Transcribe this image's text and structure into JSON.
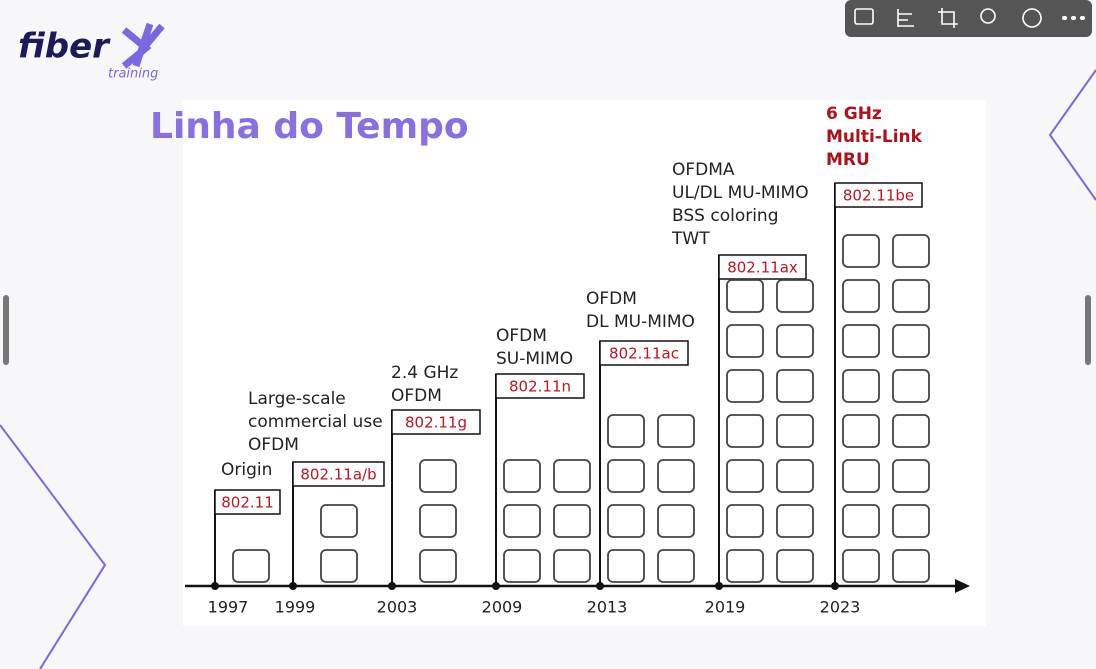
{
  "logo": {
    "name": "fiber",
    "tagline": "training"
  },
  "slide": {
    "title": "Linha do Tempo",
    "milestones": [
      {
        "year": "1997",
        "standard": "802.11",
        "features": [
          "Origin"
        ]
      },
      {
        "year": "1999",
        "standard": "802.11a/b",
        "features": [
          "Large-scale",
          "commercial use",
          "OFDM"
        ]
      },
      {
        "year": "2003",
        "standard": "802.11g",
        "features": [
          "2.4 GHz",
          "OFDM"
        ]
      },
      {
        "year": "2009",
        "standard": "802.11n",
        "features": [
          "OFDM",
          "SU-MIMO"
        ]
      },
      {
        "year": "2013",
        "standard": "802.11ac",
        "features": [
          "OFDM",
          "DL MU-MIMO"
        ]
      },
      {
        "year": "2019",
        "standard": "802.11ax",
        "features": [
          "OFDMA",
          "UL/DL MU-MIMO",
          "BSS coloring",
          "TWT"
        ]
      },
      {
        "year": "2023",
        "standard": "802.11be",
        "features": [
          "6 GHz",
          "Multi-Link",
          "MRU"
        ]
      }
    ]
  }
}
